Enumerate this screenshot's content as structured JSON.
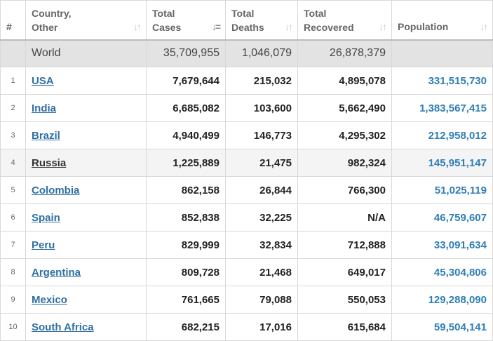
{
  "headers": {
    "num": "#",
    "country_line1": "Country,",
    "country_line2": "Other",
    "cases_line1": "Total",
    "cases_line2": "Cases",
    "deaths_line1": "Total",
    "deaths_line2": "Deaths",
    "recovered_line1": "Total",
    "recovered_line2": "Recovered",
    "population": "Population",
    "sort_icon": "↓↑",
    "sort_active_icon": "↓="
  },
  "world": {
    "name": "World",
    "cases": "35,709,955",
    "deaths": "1,046,079",
    "recovered": "26,878,379",
    "population": ""
  },
  "rows": [
    {
      "rank": "1",
      "country": "USA",
      "cases": "7,679,644",
      "deaths": "215,032",
      "recovered": "4,895,078",
      "population": "331,515,730"
    },
    {
      "rank": "2",
      "country": "India",
      "cases": "6,685,082",
      "deaths": "103,600",
      "recovered": "5,662,490",
      "population": "1,383,567,415"
    },
    {
      "rank": "3",
      "country": "Brazil",
      "cases": "4,940,499",
      "deaths": "146,773",
      "recovered": "4,295,302",
      "population": "212,958,012"
    },
    {
      "rank": "4",
      "country": "Russia",
      "cases": "1,225,889",
      "deaths": "21,475",
      "recovered": "982,324",
      "population": "145,951,147"
    },
    {
      "rank": "5",
      "country": "Colombia",
      "cases": "862,158",
      "deaths": "26,844",
      "recovered": "766,300",
      "population": "51,025,119"
    },
    {
      "rank": "6",
      "country": "Spain",
      "cases": "852,838",
      "deaths": "32,225",
      "recovered": "N/A",
      "population": "46,759,607"
    },
    {
      "rank": "7",
      "country": "Peru",
      "cases": "829,999",
      "deaths": "32,834",
      "recovered": "712,888",
      "population": "33,091,634"
    },
    {
      "rank": "8",
      "country": "Argentina",
      "cases": "809,728",
      "deaths": "21,468",
      "recovered": "649,017",
      "population": "45,304,806"
    },
    {
      "rank": "9",
      "country": "Mexico",
      "cases": "761,665",
      "deaths": "79,088",
      "recovered": "550,053",
      "population": "129,288,090"
    },
    {
      "rank": "10",
      "country": "South Africa",
      "cases": "682,215",
      "deaths": "17,016",
      "recovered": "615,684",
      "population": "59,504,141"
    }
  ],
  "colors": {
    "link": "#2f6fa3",
    "population": "#2f7fb5",
    "world_row_bg": "#e3e3e3",
    "highlight_row_bg": "#f4f4f4"
  }
}
